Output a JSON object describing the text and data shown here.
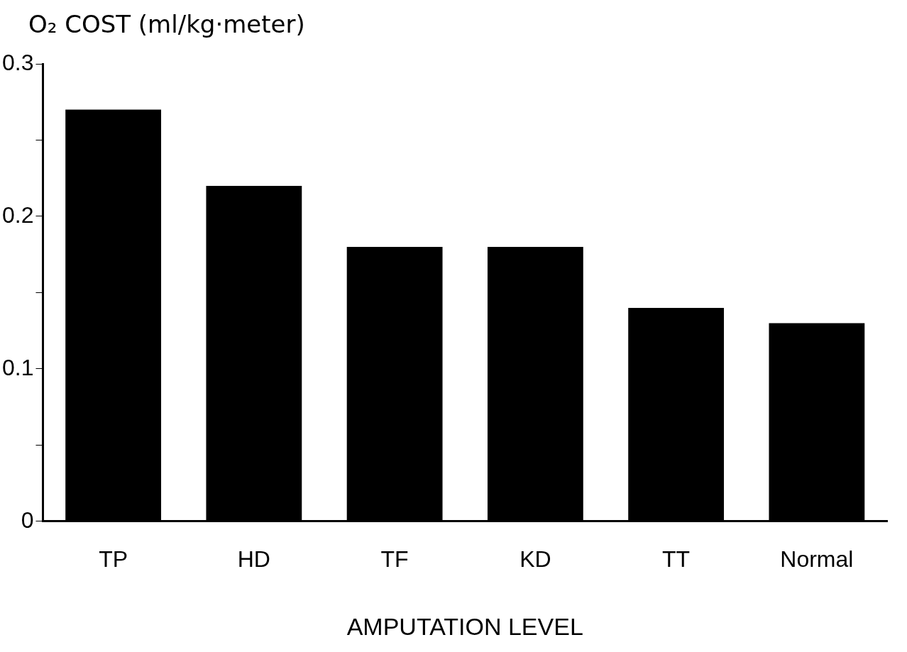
{
  "chart_data": {
    "type": "bar",
    "ylabel": "O₂ COST (ml/kg·meter)",
    "xlabel": "AMPUTATION LEVEL",
    "categories": [
      "TP",
      "HD",
      "TF",
      "KD",
      "TT",
      "Normal"
    ],
    "values": [
      0.27,
      0.22,
      0.18,
      0.18,
      0.14,
      0.13
    ],
    "color": "#000000",
    "ylim": [
      0,
      0.3
    ],
    "yticks": [
      0,
      {
        "value": 0.05,
        "label": null
      },
      0.1,
      {
        "value": 0.15,
        "label": null
      },
      0.2,
      {
        "value": 0.25,
        "label": null
      },
      0.3
    ],
    "grid": false,
    "legend": false
  }
}
